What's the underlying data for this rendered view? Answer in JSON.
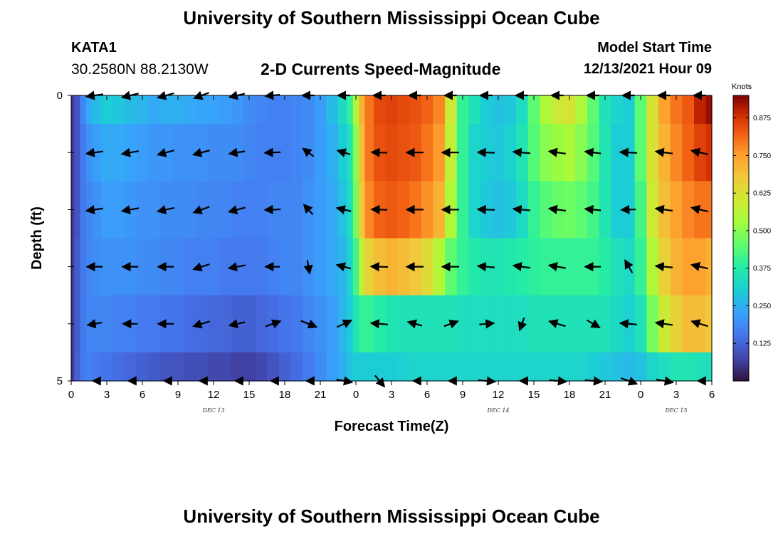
{
  "header": {
    "title": "University of Southern Mississippi Ocean Cube",
    "station": "KATA1",
    "coords": "30.2580N  88.2130W",
    "subtitle": "2-D Currents Speed-Magnitude",
    "model_start_label": "Model Start Time",
    "model_start_value": "12/13/2021 Hour 09"
  },
  "footer": {
    "title": "University of Southern Mississippi Ocean Cube"
  },
  "chart_data": {
    "type": "heatmap",
    "title": "2-D Currents Speed-Magnitude",
    "xlabel": "Forecast Time(Z)",
    "ylabel": "Depth (ft)",
    "xlim": [
      0,
      54
    ],
    "ylim": [
      0,
      5
    ],
    "x_tick_values": [
      0,
      3,
      6,
      9,
      12,
      15,
      18,
      21,
      24,
      27,
      30,
      33,
      36,
      39,
      42,
      45,
      48,
      51,
      54
    ],
    "x_tick_labels": [
      "0",
      "3",
      "6",
      "9",
      "12",
      "15",
      "18",
      "21",
      "0",
      "3",
      "6",
      "9",
      "12",
      "15",
      "18",
      "21",
      "0",
      "3",
      "6"
    ],
    "date_labels": [
      {
        "x": 12,
        "text": "DEC 13"
      },
      {
        "x": 36,
        "text": "DEC 14"
      },
      {
        "x": 51,
        "text": "DEC 15"
      }
    ],
    "y_tick_labels": [
      {
        "y": 0,
        "text": "0"
      },
      {
        "y": 5,
        "text": "5"
      }
    ],
    "colorbar": {
      "unit": "Knots",
      "range": [
        0.0,
        0.95
      ],
      "ticks": [
        0.125,
        0.25,
        0.375,
        0.5,
        0.625,
        0.75,
        0.875
      ],
      "tick_labels": [
        "0.125",
        "0.250",
        "0.375",
        "0.500",
        "0.625",
        "0.750",
        "0.875"
      ]
    },
    "speed_grid": {
      "depths": [
        0,
        1,
        2,
        3,
        4,
        5
      ],
      "times": [
        0,
        0.5,
        1,
        1.5,
        2,
        3,
        4,
        5,
        6,
        7,
        8,
        9,
        10,
        11,
        12,
        13,
        14,
        15,
        16,
        17,
        18,
        19,
        20,
        21,
        22,
        23,
        23.5,
        24,
        24.5,
        25,
        26,
        27,
        28,
        29,
        30,
        31,
        32,
        33,
        34,
        35,
        36,
        37,
        38,
        39,
        40,
        41,
        42,
        43,
        44,
        45,
        46,
        47,
        48,
        49,
        50,
        51,
        52,
        53,
        54
      ],
      "values": [
        [
          0.06,
          0.1,
          0.18,
          0.24,
          0.27,
          0.3,
          0.29,
          0.27,
          0.26,
          0.24,
          0.25,
          0.25,
          0.24,
          0.23,
          0.23,
          0.22,
          0.21,
          0.19,
          0.18,
          0.17,
          0.17,
          0.18,
          0.19,
          0.22,
          0.27,
          0.33,
          0.4,
          0.55,
          0.72,
          0.8,
          0.85,
          0.86,
          0.85,
          0.84,
          0.82,
          0.78,
          0.6,
          0.4,
          0.35,
          0.3,
          0.28,
          0.29,
          0.34,
          0.45,
          0.55,
          0.6,
          0.62,
          0.55,
          0.45,
          0.35,
          0.32,
          0.3,
          0.45,
          0.62,
          0.75,
          0.8,
          0.83,
          0.9,
          0.93
        ],
        [
          0.06,
          0.1,
          0.16,
          0.2,
          0.22,
          0.24,
          0.24,
          0.23,
          0.22,
          0.21,
          0.21,
          0.2,
          0.2,
          0.2,
          0.19,
          0.19,
          0.19,
          0.18,
          0.17,
          0.17,
          0.17,
          0.18,
          0.19,
          0.22,
          0.25,
          0.3,
          0.36,
          0.5,
          0.7,
          0.8,
          0.84,
          0.85,
          0.84,
          0.83,
          0.8,
          0.76,
          0.58,
          0.4,
          0.32,
          0.3,
          0.29,
          0.31,
          0.36,
          0.44,
          0.5,
          0.52,
          0.54,
          0.5,
          0.44,
          0.36,
          0.3,
          0.3,
          0.45,
          0.62,
          0.72,
          0.78,
          0.82,
          0.86,
          0.88
        ],
        [
          0.06,
          0.1,
          0.16,
          0.18,
          0.2,
          0.22,
          0.22,
          0.21,
          0.2,
          0.2,
          0.19,
          0.19,
          0.19,
          0.18,
          0.18,
          0.18,
          0.17,
          0.17,
          0.17,
          0.18,
          0.18,
          0.18,
          0.2,
          0.22,
          0.24,
          0.28,
          0.34,
          0.48,
          0.68,
          0.78,
          0.82,
          0.83,
          0.82,
          0.8,
          0.77,
          0.72,
          0.55,
          0.4,
          0.32,
          0.29,
          0.28,
          0.29,
          0.33,
          0.4,
          0.44,
          0.46,
          0.47,
          0.45,
          0.42,
          0.36,
          0.3,
          0.3,
          0.42,
          0.6,
          0.7,
          0.75,
          0.78,
          0.8,
          0.8
        ],
        [
          0.06,
          0.11,
          0.16,
          0.18,
          0.19,
          0.2,
          0.2,
          0.2,
          0.19,
          0.19,
          0.18,
          0.18,
          0.17,
          0.17,
          0.17,
          0.16,
          0.16,
          0.16,
          0.16,
          0.17,
          0.18,
          0.18,
          0.2,
          0.22,
          0.24,
          0.26,
          0.32,
          0.42,
          0.58,
          0.66,
          0.7,
          0.72,
          0.7,
          0.68,
          0.64,
          0.56,
          0.45,
          0.4,
          0.37,
          0.36,
          0.36,
          0.37,
          0.38,
          0.39,
          0.4,
          0.4,
          0.4,
          0.4,
          0.4,
          0.38,
          0.35,
          0.33,
          0.4,
          0.55,
          0.66,
          0.72,
          0.75,
          0.75,
          0.72
        ],
        [
          0.06,
          0.11,
          0.16,
          0.18,
          0.18,
          0.18,
          0.17,
          0.17,
          0.16,
          0.16,
          0.15,
          0.15,
          0.14,
          0.14,
          0.13,
          0.13,
          0.12,
          0.12,
          0.13,
          0.14,
          0.15,
          0.16,
          0.18,
          0.2,
          0.22,
          0.26,
          0.3,
          0.36,
          0.4,
          0.4,
          0.38,
          0.36,
          0.35,
          0.35,
          0.35,
          0.35,
          0.35,
          0.34,
          0.34,
          0.34,
          0.34,
          0.34,
          0.34,
          0.35,
          0.35,
          0.35,
          0.35,
          0.35,
          0.35,
          0.35,
          0.33,
          0.31,
          0.35,
          0.48,
          0.6,
          0.66,
          0.7,
          0.7,
          0.68
        ],
        [
          0.06,
          0.12,
          0.16,
          0.17,
          0.16,
          0.15,
          0.14,
          0.13,
          0.12,
          0.11,
          0.1,
          0.1,
          0.09,
          0.09,
          0.08,
          0.08,
          0.07,
          0.07,
          0.08,
          0.1,
          0.12,
          0.14,
          0.16,
          0.19,
          0.22,
          0.25,
          0.28,
          0.3,
          0.3,
          0.3,
          0.3,
          0.3,
          0.31,
          0.32,
          0.32,
          0.32,
          0.32,
          0.32,
          0.32,
          0.32,
          0.32,
          0.32,
          0.32,
          0.32,
          0.32,
          0.32,
          0.32,
          0.32,
          0.3,
          0.29,
          0.28,
          0.27,
          0.28,
          0.32,
          0.34,
          0.36,
          0.36,
          0.35,
          0.34
        ]
      ]
    },
    "vectors": {
      "times": [
        2,
        5,
        8,
        11,
        14,
        17,
        20,
        23,
        26,
        29,
        32,
        35,
        38,
        41,
        44,
        47,
        50,
        53
      ],
      "depths": [
        0,
        1,
        2,
        3,
        4,
        5
      ],
      "directions_deg": [
        [
          -172,
          -167,
          -165,
          -160,
          -167,
          -175,
          -180,
          -180,
          -180,
          -180,
          -180,
          -180,
          -180,
          -180,
          -180,
          -180,
          -180,
          -180
        ],
        [
          -172,
          -170,
          -165,
          -165,
          -171,
          -178,
          143,
          163,
          178,
          180,
          180,
          178,
          175,
          172,
          173,
          177,
          173,
          167
        ],
        [
          -172,
          -170,
          -168,
          -160,
          -165,
          -178,
          132,
          167,
          178,
          180,
          180,
          178,
          175,
          172,
          175,
          -178,
          172,
          167
        ],
        [
          -180,
          -180,
          -180,
          -162,
          -170,
          -180,
          -80,
          165,
          178,
          180,
          180,
          175,
          172,
          170,
          -180,
          120,
          175,
          167
        ],
        [
          -170,
          -180,
          -180,
          -163,
          -168,
          20,
          -22,
          25,
          175,
          165,
          20,
          5,
          -110,
          163,
          -30,
          175,
          172,
          163
        ],
        [
          -180,
          -180,
          -180,
          -180,
          -180,
          -180,
          -180,
          -10,
          -50,
          -180,
          -180,
          -5,
          -180,
          -5,
          -5,
          -20,
          -10,
          -180
        ]
      ],
      "lengths_hours": [
        [
          1.4,
          1.4,
          1.4,
          1.3,
          1.3,
          1.2,
          1.0,
          1.0,
          1.0,
          1.0,
          1.0,
          1.0,
          1.0,
          1.0,
          1.0,
          1.0,
          1.0,
          1.0
        ],
        [
          1.4,
          1.4,
          1.4,
          1.4,
          1.3,
          1.3,
          1.1,
          1.1,
          1.3,
          1.4,
          1.4,
          1.4,
          1.4,
          1.4,
          1.3,
          1.4,
          1.4,
          1.4
        ],
        [
          1.4,
          1.4,
          1.4,
          1.4,
          1.4,
          1.3,
          1.1,
          1.2,
          1.3,
          1.4,
          1.4,
          1.4,
          1.4,
          1.4,
          1.3,
          1.2,
          1.4,
          1.4
        ],
        [
          1.3,
          1.3,
          1.3,
          1.4,
          1.4,
          1.2,
          1.1,
          1.2,
          1.4,
          1.4,
          1.4,
          1.4,
          1.4,
          1.4,
          1.3,
          1.2,
          1.4,
          1.4
        ],
        [
          1.2,
          1.2,
          1.3,
          1.4,
          1.3,
          1.3,
          1.4,
          1.3,
          1.4,
          1.2,
          1.2,
          1.2,
          1.1,
          1.4,
          1.2,
          1.4,
          1.4,
          1.4
        ],
        [
          0.3,
          0.3,
          0.3,
          0.3,
          0.3,
          0.3,
          0.3,
          1.3,
          1.2,
          0.3,
          0.3,
          1.4,
          0.3,
          1.4,
          1.4,
          1.4,
          1.4,
          0.3
        ]
      ]
    }
  }
}
